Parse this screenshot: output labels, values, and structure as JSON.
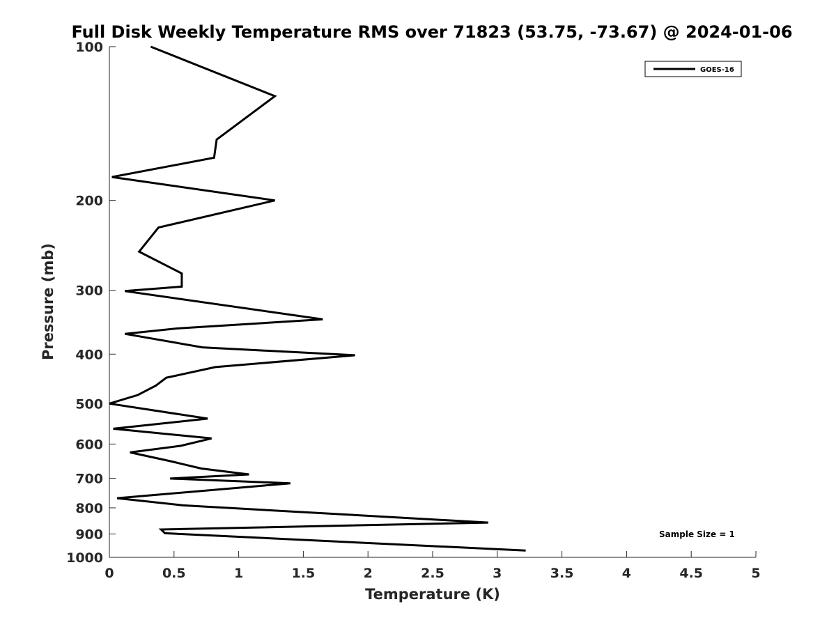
{
  "chart_data": {
    "type": "line",
    "title": "Full Disk Weekly Temperature RMS over 71823 (53.75, -73.67) @ 2024-01-06",
    "xlabel": "Temperature (K)",
    "ylabel": "Pressure (mb)",
    "xlim": [
      0,
      5
    ],
    "ylim": [
      100,
      1000
    ],
    "y_scale": "log",
    "y_reversed": true,
    "x_ticks": [
      "0",
      "0.5",
      "1",
      "1.5",
      "2",
      "2.5",
      "3",
      "3.5",
      "4",
      "4.5",
      "5"
    ],
    "y_ticks": [
      "100",
      "200",
      "300",
      "400",
      "500",
      "600",
      "700",
      "800",
      "900",
      "1000"
    ],
    "grid": false,
    "legend_position": "top-right",
    "annotation": "Sample Size = 1",
    "series": [
      {
        "name": "GOES-16",
        "color": "#000000",
        "x": [
          0.32,
          1.28,
          0.83,
          0.81,
          0.02,
          1.28,
          0.38,
          0.23,
          0.56,
          0.56,
          0.12,
          1.65,
          0.54,
          0.12,
          0.72,
          1.9,
          0.82,
          0.44,
          0.36,
          0.22,
          0.0,
          0.76,
          0.03,
          0.79,
          0.55,
          0.16,
          0.47,
          0.71,
          1.08,
          0.47,
          1.4,
          0.06,
          0.57,
          2.93,
          0.4,
          0.43,
          3.22
        ],
        "y": [
          100,
          125,
          152,
          165,
          180,
          200,
          226,
          252,
          278,
          295,
          301,
          342,
          356,
          365,
          388,
          402,
          424,
          445,
          461,
          481,
          500,
          535,
          560,
          585,
          605,
          623,
          648,
          670,
          688,
          701,
          716,
          766,
          791,
          855,
          882,
          897,
          970
        ]
      }
    ]
  }
}
